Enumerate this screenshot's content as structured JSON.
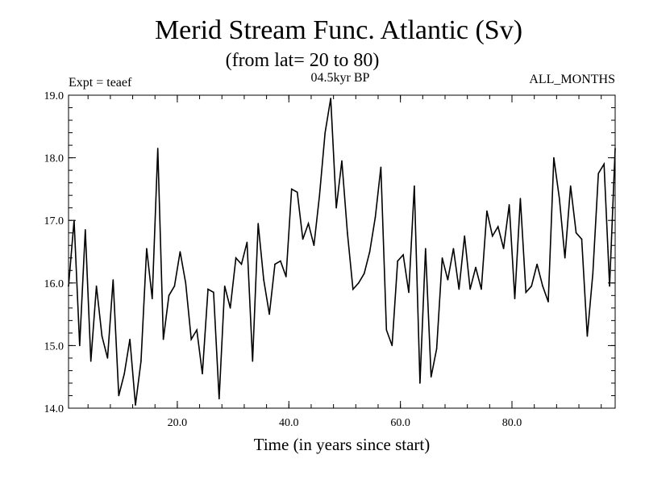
{
  "chart_data": {
    "type": "line",
    "title": "Merid Stream Func. Atlantic (Sv)",
    "subtitle": "(from lat= 20 to 80)",
    "expt_label": "Expt = teaef",
    "period_label": "04.5kyr BP",
    "months_label": "ALL_MONTHS",
    "xlabel": "Time (in years since start)",
    "ylabel": "",
    "xlim": [
      0.5,
      98.5
    ],
    "ylim": [
      14.0,
      19.0
    ],
    "x_ticks": [
      20,
      40,
      60,
      80
    ],
    "x_tick_labels": [
      "20.0",
      "40.0",
      "60.0",
      "80.0"
    ],
    "y_ticks": [
      14,
      15,
      16,
      17,
      18,
      19
    ],
    "y_tick_labels": [
      "14.0",
      "15.0",
      "16.0",
      "17.0",
      "18.0",
      "19.0"
    ],
    "series": [
      {
        "name": "Merid Stream Func. Atlantic",
        "color": "#000000",
        "x": [
          0.5,
          1.5,
          2.5,
          3.5,
          4.5,
          5.5,
          6.5,
          7.5,
          8.5,
          9.5,
          10.5,
          11.5,
          12.5,
          13.5,
          14.5,
          15.5,
          16.5,
          17.5,
          18.5,
          19.5,
          20.5,
          21.5,
          22.5,
          23.5,
          24.5,
          25.5,
          26.5,
          27.5,
          28.5,
          29.5,
          30.5,
          31.5,
          32.5,
          33.5,
          34.5,
          35.5,
          36.5,
          37.5,
          38.5,
          39.5,
          40.5,
          41.5,
          42.5,
          43.5,
          44.5,
          45.5,
          46.5,
          47.5,
          48.5,
          49.5,
          50.5,
          51.5,
          52.5,
          53.5,
          54.5,
          55.5,
          56.5,
          57.5,
          58.5,
          59.5,
          60.5,
          61.5,
          62.5,
          63.5,
          64.5,
          65.5,
          66.5,
          67.5,
          68.5,
          69.5,
          70.5,
          71.5,
          72.5,
          73.5,
          74.5,
          75.5,
          76.5,
          77.5,
          78.5,
          79.5,
          80.5,
          81.5,
          82.5,
          83.5,
          84.5,
          85.5,
          86.5,
          87.5,
          88.5,
          89.5,
          90.5,
          91.5,
          92.5,
          93.5,
          94.5,
          95.5,
          96.5,
          97.5,
          98.5
        ],
        "values": [
          15.95,
          17.0,
          15.0,
          16.85,
          14.75,
          15.95,
          15.15,
          14.8,
          16.05,
          14.2,
          14.55,
          15.1,
          14.05,
          14.75,
          16.55,
          15.75,
          18.15,
          15.1,
          15.8,
          15.95,
          16.5,
          16.0,
          15.1,
          15.25,
          14.55,
          15.9,
          15.85,
          14.15,
          15.95,
          15.6,
          16.4,
          16.3,
          16.65,
          14.75,
          16.95,
          16.05,
          15.5,
          16.3,
          16.35,
          16.1,
          17.5,
          17.45,
          16.7,
          16.95,
          16.6,
          17.4,
          18.4,
          18.95,
          17.2,
          17.95,
          16.8,
          15.9,
          16.0,
          16.15,
          16.5,
          17.05,
          17.85,
          15.25,
          15.0,
          16.35,
          16.45,
          15.85,
          17.55,
          14.4,
          16.55,
          14.5,
          14.95,
          16.4,
          16.05,
          16.55,
          15.9,
          16.75,
          15.9,
          16.25,
          15.9,
          17.15,
          16.75,
          16.9,
          16.55,
          17.25,
          15.75,
          17.35,
          15.85,
          15.95,
          16.3,
          15.95,
          15.7,
          18.0,
          17.35,
          16.4,
          17.55,
          16.8,
          16.7,
          15.15,
          16.15,
          17.75,
          17.9,
          15.95,
          18.15
        ]
      }
    ]
  }
}
